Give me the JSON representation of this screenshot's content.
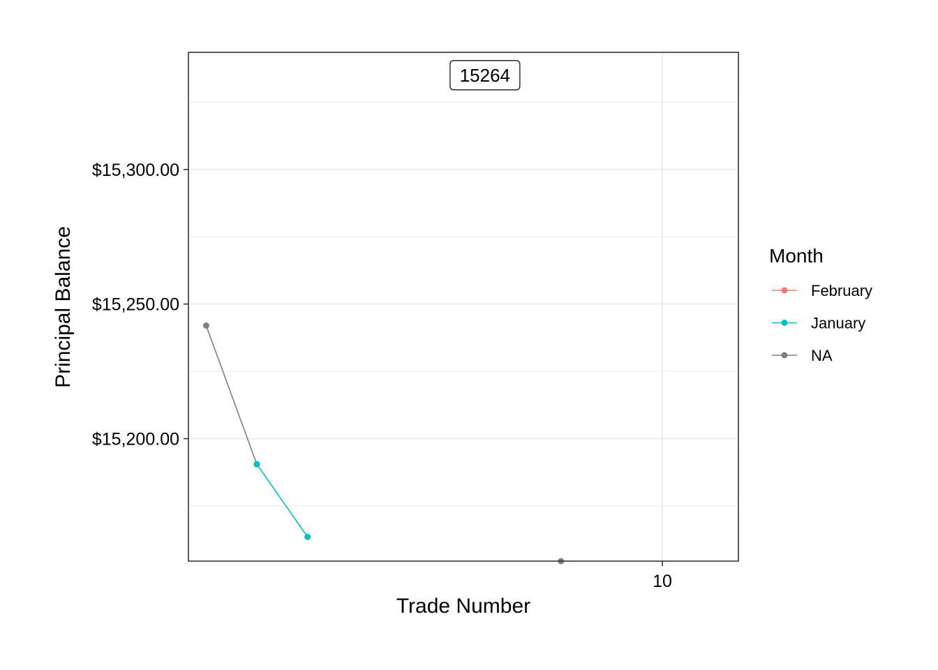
{
  "chart_data": {
    "type": "line",
    "xlabel": "Trade Number",
    "ylabel": "Principal Balance",
    "xlim": [
      0.65,
      11.5
    ],
    "ylim": [
      15154.5,
      15343.5
    ],
    "x_ticks": [
      {
        "value": 10,
        "label": "10"
      }
    ],
    "y_ticks": [
      {
        "value": 15200,
        "label": "$15,200.00"
      },
      {
        "value": 15250,
        "label": "$15,250.00"
      },
      {
        "value": 15300,
        "label": "$15,300.00"
      }
    ],
    "x_minor_grid": [],
    "y_minor_grid": [
      15175,
      15225,
      15275,
      15325
    ],
    "grid": true,
    "annotation": {
      "text": "15264",
      "x": 6.5,
      "y": 15335
    },
    "series": [
      {
        "name": "NA",
        "color": "#7F7F7F",
        "points": [
          [
            1,
            15242
          ],
          [
            2,
            15190.5
          ]
        ]
      },
      {
        "name": "January",
        "color": "#00BFC4",
        "points": [
          [
            2,
            15190.5
          ],
          [
            3,
            15163.5
          ]
        ]
      },
      {
        "name": "NA",
        "color": "#7F7F7F",
        "points": [
          [
            8,
            15154.5
          ]
        ]
      }
    ],
    "legend": {
      "title": "Month",
      "position": "right",
      "entries": [
        {
          "label": "February",
          "color": "#F8766D"
        },
        {
          "label": "January",
          "color": "#00BFC4"
        },
        {
          "label": "NA",
          "color": "#7F7F7F"
        }
      ]
    }
  }
}
